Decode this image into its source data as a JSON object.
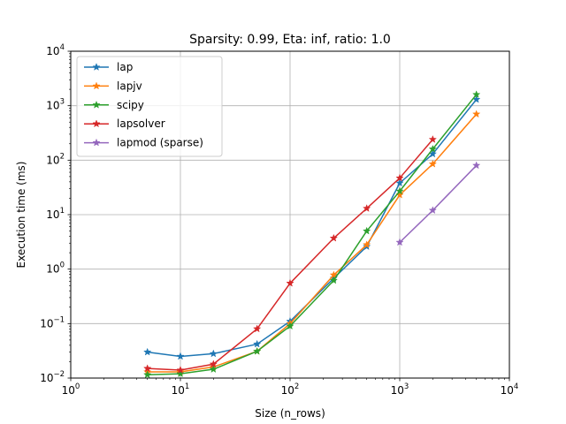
{
  "chart_data": {
    "type": "line",
    "title": "Sparsity: 0.99, Eta: inf, ratio: 1.0",
    "xlabel": "Size (n_rows)",
    "ylabel": "Execution time (ms)",
    "xscale": "log",
    "yscale": "log",
    "xlim": [
      1,
      10000
    ],
    "ylim": [
      0.01,
      10000
    ],
    "grid": true,
    "legend_position": "top-left",
    "x_ticks": [
      {
        "value": 1,
        "base": "10",
        "exp": "0"
      },
      {
        "value": 10,
        "base": "10",
        "exp": "1"
      },
      {
        "value": 100,
        "base": "10",
        "exp": "2"
      },
      {
        "value": 1000,
        "base": "10",
        "exp": "3"
      },
      {
        "value": 10000,
        "base": "10",
        "exp": "4"
      }
    ],
    "y_ticks": [
      {
        "value": 0.01,
        "base": "10",
        "exp": "−2"
      },
      {
        "value": 0.1,
        "base": "10",
        "exp": "−1"
      },
      {
        "value": 1,
        "base": "10",
        "exp": "0"
      },
      {
        "value": 10,
        "base": "10",
        "exp": "1"
      },
      {
        "value": 100,
        "base": "10",
        "exp": "2"
      },
      {
        "value": 1000,
        "base": "10",
        "exp": "3"
      },
      {
        "value": 10000,
        "base": "10",
        "exp": "4"
      }
    ],
    "series": [
      {
        "name": "lap",
        "color": "#1f77b4",
        "x": [
          5,
          10,
          20,
          50,
          100,
          250,
          500,
          1000,
          2000,
          5000
        ],
        "y": [
          0.03,
          0.025,
          0.028,
          0.042,
          0.11,
          0.68,
          2.6,
          38,
          130,
          1300
        ]
      },
      {
        "name": "lapjv",
        "color": "#ff7f0e",
        "x": [
          5,
          10,
          20,
          50,
          100,
          250,
          500,
          1000,
          2000,
          5000
        ],
        "y": [
          0.013,
          0.013,
          0.016,
          0.031,
          0.1,
          0.78,
          2.8,
          23,
          85,
          700
        ]
      },
      {
        "name": "scipy",
        "color": "#2ca02c",
        "x": [
          5,
          10,
          20,
          50,
          100,
          250,
          500,
          1000,
          2000,
          5000
        ],
        "y": [
          0.0115,
          0.012,
          0.0145,
          0.031,
          0.09,
          0.62,
          5.0,
          27,
          160,
          1600
        ]
      },
      {
        "name": "lapsolver",
        "color": "#d62728",
        "x": [
          5,
          10,
          20,
          50,
          100,
          250,
          500,
          1000,
          2000
        ],
        "y": [
          0.015,
          0.014,
          0.018,
          0.08,
          0.55,
          3.7,
          13,
          47,
          240
        ]
      },
      {
        "name": "lapmod (sparse)",
        "color": "#9467bd",
        "x": [
          1000,
          2000,
          5000
        ],
        "y": [
          3.1,
          12,
          80
        ]
      }
    ]
  }
}
